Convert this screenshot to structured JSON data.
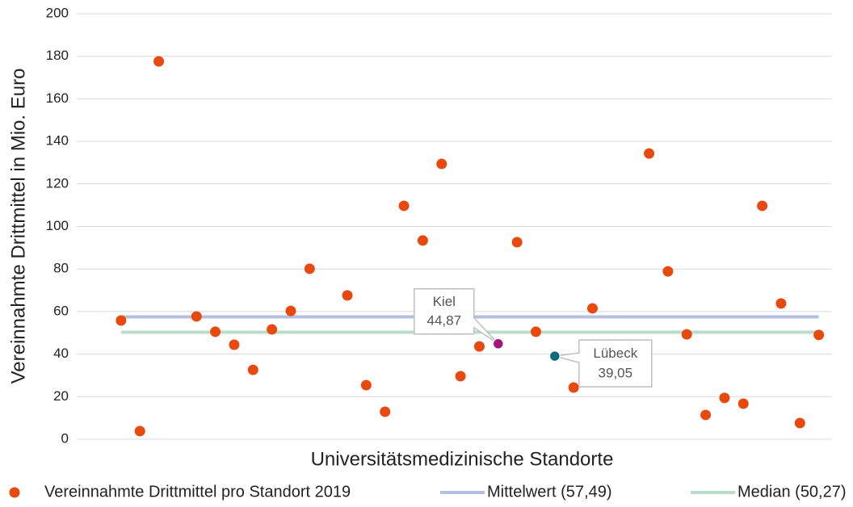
{
  "chart_data": {
    "type": "scatter",
    "x_label": "Universitätsmedizinische Standorte",
    "y_label": "Vereinnahmte Drittmittel in Mio. Euro",
    "xlim": [
      -1.35,
      38.7
    ],
    "ylim": [
      0,
      200
    ],
    "yticks": [
      0,
      20,
      40,
      60,
      80,
      100,
      120,
      140,
      160,
      180,
      200
    ],
    "grid": true,
    "series": [
      {
        "name": "Vereinnahmte Drittmittel pro Standort 2019",
        "color": "#e8490f",
        "x": [
          1,
          2,
          3,
          5,
          6,
          7,
          8,
          9,
          10,
          11,
          13,
          14,
          15,
          16,
          17,
          18,
          19,
          20,
          22,
          23,
          25,
          26,
          27,
          29,
          30,
          31,
          32,
          33,
          34,
          35,
          36,
          37,
          38
        ],
        "values": [
          55.8,
          3.8,
          177.6,
          57.7,
          50.5,
          44.4,
          32.6,
          51.6,
          60.3,
          80.1,
          67.6,
          25.4,
          12.9,
          109.7,
          93.4,
          129.4,
          29.6,
          43.6,
          92.6,
          50.5,
          24.3,
          61.5,
          29.6,
          134.3,
          78.9,
          49.3,
          11.4,
          19.4,
          16.7,
          109.7,
          63.8,
          7.6,
          49.0
        ]
      }
    ],
    "highlights": [
      {
        "name": "Kiel",
        "x": 21,
        "value": 44.87,
        "value_label": "44,87",
        "color": "#a3177a"
      },
      {
        "name": "Lübeck",
        "x": 24,
        "value": 39.05,
        "value_label": "39,05",
        "color": "#0e6a80"
      }
    ],
    "reference_lines": [
      {
        "name": "Mittelwert (57,49)",
        "value": 57.49,
        "color": "#b4c0e0"
      },
      {
        "name": "Median (50,27)",
        "value": 50.27,
        "color": "#b9dccb"
      }
    ]
  }
}
